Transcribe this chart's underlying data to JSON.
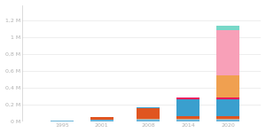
{
  "years": [
    1995,
    2001,
    2008,
    2014,
    2020
  ],
  "bar_width": 3.5,
  "segments": [
    {
      "label": "light_blue_bottom",
      "color": "#6ab4d8",
      "values": [
        15000,
        20000,
        25000,
        25000,
        25000
      ]
    },
    {
      "label": "gray_brown",
      "color": "#c8b09a",
      "values": [
        0,
        5000,
        8000,
        8000,
        8000
      ]
    },
    {
      "label": "orange_red",
      "color": "#e05520",
      "values": [
        0,
        35000,
        130000,
        35000,
        35000
      ]
    },
    {
      "label": "blue_mid",
      "color": "#3a9fce",
      "values": [
        0,
        0,
        12000,
        200000,
        200000
      ]
    },
    {
      "label": "magenta",
      "color": "#e8005a",
      "values": [
        0,
        0,
        0,
        15000,
        15000
      ]
    },
    {
      "label": "orange",
      "color": "#f0a050",
      "values": [
        0,
        0,
        0,
        0,
        270000
      ]
    },
    {
      "label": "pink",
      "color": "#f8a0b8",
      "values": [
        0,
        0,
        0,
        0,
        530000
      ]
    },
    {
      "label": "teal",
      "color": "#78d8c8",
      "values": [
        0,
        0,
        0,
        0,
        55000
      ]
    }
  ],
  "yticks": [
    0,
    200000,
    400000,
    600000,
    800000,
    1000000,
    1200000
  ],
  "ytick_labels": [
    "0 M",
    "0,2 M",
    "0,4 M",
    "0,6 M",
    "0,8 M",
    "1 M",
    "1,2 M"
  ],
  "xtick_labels": [
    "1995",
    "2001",
    "2008",
    "2014",
    "2020"
  ],
  "xlim": [
    1989,
    2025
  ],
  "ylim": [
    0,
    1380000
  ],
  "bg_color": "#ffffff",
  "grid_color": "#e8e8e8",
  "text_color": "#b0b0b0"
}
